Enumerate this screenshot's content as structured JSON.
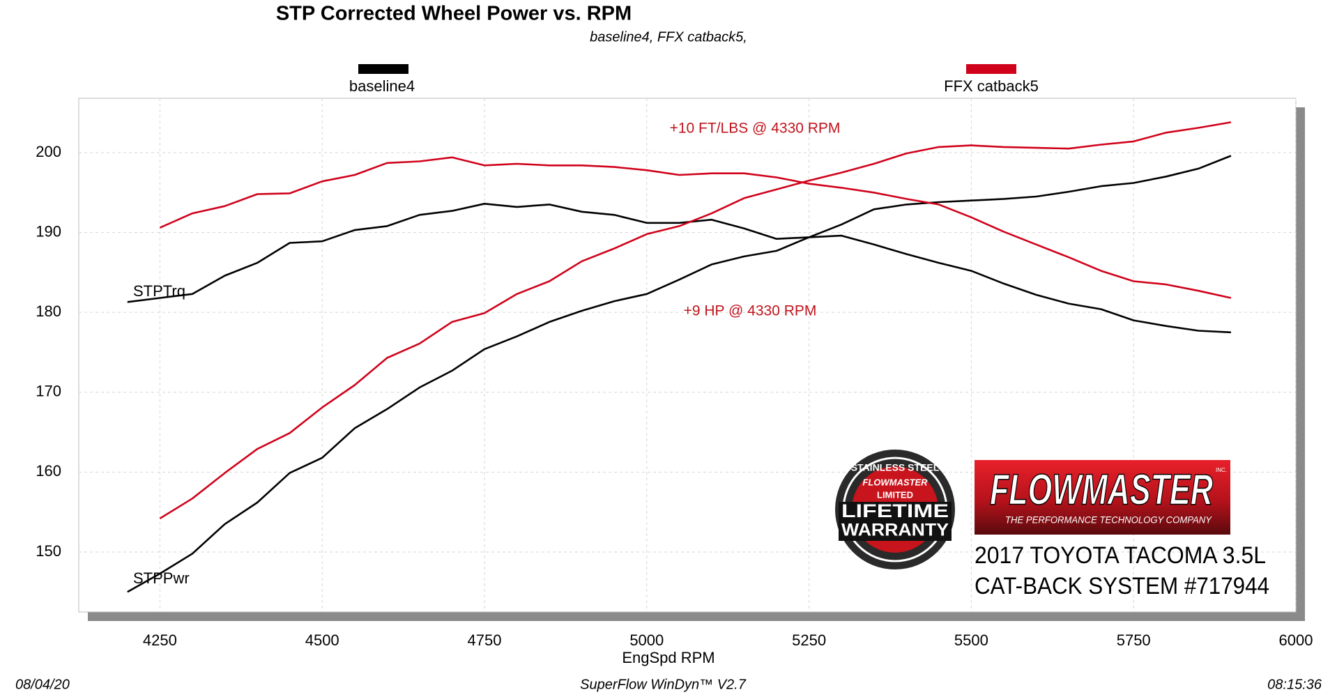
{
  "chart_data": {
    "type": "line",
    "title": "STP Corrected Wheel Power vs. RPM",
    "subtitle": "baseline4, FFX catback5,",
    "x_label": "EngSpd  RPM",
    "xlim": [
      4125,
      6000
    ],
    "xticks": [
      4250,
      4500,
      4750,
      5000,
      5250,
      5500,
      5750,
      6000
    ],
    "ylim": [
      142.5,
      206.8
    ],
    "yticks": [
      150,
      160,
      170,
      180,
      190,
      200
    ],
    "grid": true,
    "x": [
      4200,
      4250,
      4300,
      4350,
      4400,
      4450,
      4500,
      4550,
      4600,
      4650,
      4700,
      4750,
      4800,
      4850,
      4900,
      4950,
      5000,
      5050,
      5100,
      5150,
      5200,
      5250,
      5300,
      5350,
      5400,
      5450,
      5500,
      5550,
      5600,
      5650,
      5700,
      5750,
      5800,
      5850,
      5900
    ],
    "line_labels": {
      "torque": "STPTrq",
      "power": "STPPwr"
    },
    "series": [
      {
        "name": "baseline4",
        "color": "#000000",
        "torque": [
          181.3,
          181.8,
          182.3,
          184.6,
          186.2,
          188.7,
          188.9,
          190.3,
          190.8,
          192.2,
          192.7,
          193.6,
          193.2,
          193.5,
          192.6,
          192.2,
          191.2,
          191.2,
          191.6,
          190.5,
          189.2,
          189.4,
          189.6,
          188.5,
          187.3,
          186.2,
          185.2,
          183.6,
          182.2,
          181.1,
          180.4,
          179.0,
          178.3,
          177.7,
          177.5
        ],
        "power": [
          145.0,
          147.3,
          149.8,
          153.5,
          156.2,
          159.9,
          161.8,
          165.5,
          167.9,
          170.6,
          172.7,
          175.4,
          177.0,
          178.8,
          180.2,
          181.4,
          182.3,
          184.1,
          186.0,
          187.0,
          187.7,
          189.4,
          191.0,
          192.9,
          193.5,
          193.8,
          194.0,
          194.2,
          194.5,
          195.1,
          195.8,
          196.2,
          197.0,
          198.0,
          199.6
        ]
      },
      {
        "name": "FFX catback5",
        "color": "#d0021b",
        "torque": [
          null,
          190.6,
          192.4,
          193.3,
          194.8,
          194.9,
          196.4,
          197.2,
          198.7,
          198.9,
          199.4,
          198.4,
          198.6,
          198.4,
          198.4,
          198.2,
          197.8,
          197.2,
          197.4,
          197.4,
          196.9,
          196.1,
          195.6,
          195.0,
          194.2,
          193.5,
          191.9,
          190.1,
          188.5,
          186.9,
          185.2,
          183.9,
          183.5,
          182.7,
          181.8
        ],
        "power": [
          null,
          154.2,
          156.7,
          159.9,
          162.9,
          164.9,
          168.1,
          170.9,
          174.3,
          176.1,
          178.8,
          179.9,
          182.3,
          183.9,
          186.4,
          188.0,
          189.8,
          190.8,
          192.4,
          194.3,
          195.4,
          196.5,
          197.5,
          198.6,
          199.9,
          200.7,
          200.9,
          200.7,
          200.6,
          200.5,
          201.0,
          201.4,
          202.5,
          203.1,
          203.8
        ]
      }
    ],
    "annotations": [
      "+10 FT/LBS @ 4330 RPM",
      "+9 HP @ 4330 RPM"
    ]
  },
  "branding": {
    "badge": {
      "top": "STAINLESS STEEL",
      "brand": "FLOWMASTER",
      "limited": "LIMITED",
      "line1": "LIFETIME",
      "line2": "WARRANTY"
    },
    "logo": {
      "name": "FLOWMASTER",
      "inc": "INC.",
      "tagline": "THE PERFORMANCE TECHNOLOGY COMPANY"
    },
    "caption": [
      "2017 TOYOTA TACOMA 3.5L",
      "CAT-BACK SYSTEM #717944"
    ]
  },
  "footer": {
    "date": "08/04/20",
    "software": "SuperFlow WinDyn™ V2.7",
    "time": "08:15:36"
  }
}
